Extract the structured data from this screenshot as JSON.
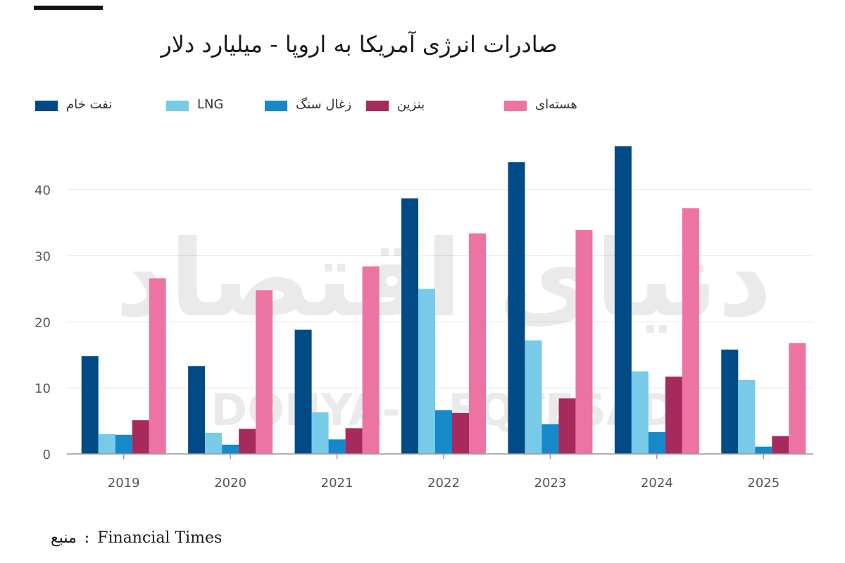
{
  "chart_data": {
    "type": "bar",
    "title": "صادرات انرژی آمریکا به اروپا - میلیارد دلار",
    "categories": [
      "2019",
      "2020",
      "2021",
      "2022",
      "2023",
      "2024",
      "2025"
    ],
    "ylim": [
      0,
      47
    ],
    "yticks": [
      0,
      10,
      20,
      30,
      40
    ],
    "grid": true,
    "legend_placement": "top",
    "series": [
      {
        "name": "نفت خام",
        "color": "#004a86",
        "values": [
          14.8,
          13.3,
          18.8,
          38.7,
          44.2,
          46.6,
          15.8
        ]
      },
      {
        "name": "LNG",
        "color": "#77cbe8",
        "values": [
          3.0,
          3.2,
          6.3,
          25.0,
          17.2,
          12.5,
          11.2
        ]
      },
      {
        "name": "زغال سنگ",
        "color": "#1589c9",
        "values": [
          2.9,
          1.4,
          2.2,
          6.6,
          4.5,
          3.3,
          1.1
        ]
      },
      {
        "name": "بنزین",
        "color": "#a62a5b",
        "values": [
          5.1,
          3.8,
          3.9,
          6.2,
          8.4,
          11.7,
          2.7
        ]
      },
      {
        "name": "هسته‌ای",
        "color": "#ed73a3",
        "values": [
          26.6,
          24.8,
          28.4,
          33.4,
          33.9,
          37.2,
          16.8
        ]
      }
    ]
  },
  "watermark": {
    "text_latin": "DONYA-E-EQTESAD",
    "text_persian": "دنیای اقتصاد"
  },
  "source": {
    "label": "منبع",
    "separator": ":",
    "name": "Financial Times"
  }
}
